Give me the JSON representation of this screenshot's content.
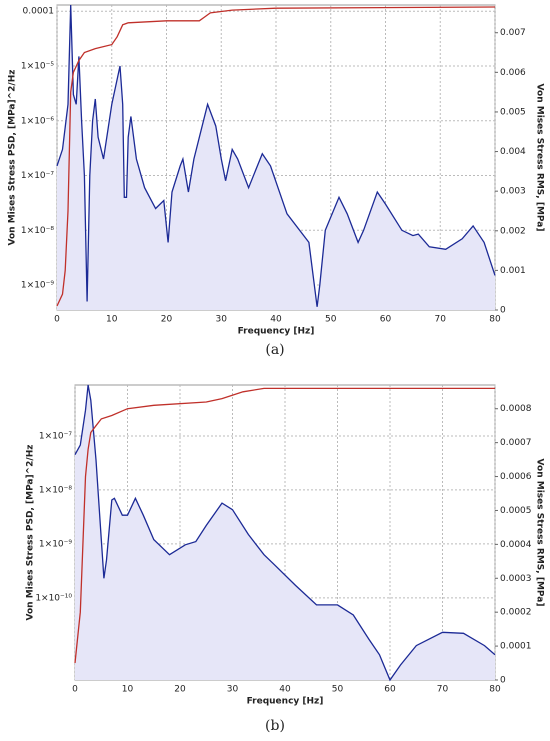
{
  "chart_data": [
    {
      "type": "line",
      "caption": "(a)",
      "x_label": "Frequency [Hz]",
      "y_label": "Von Mises Stress PSD, [MPa]^2/Hz",
      "y2_label": "Von Mises Stress RMS, [MPa]",
      "ylog": true,
      "grid": true,
      "xlim": [
        0,
        80
      ],
      "xticks": [
        0,
        10,
        20,
        30,
        40,
        50,
        60,
        70,
        80
      ],
      "ylim": [
        3.5e-10,
        0.00013
      ],
      "yticks": [
        0.0001,
        {
          "value": 1e-05,
          "label": "1×10⁻⁵"
        },
        {
          "value": 1e-06,
          "label": "1×10⁻⁶"
        },
        {
          "value": 1e-07,
          "label": "1×10⁻⁷"
        },
        {
          "value": 1e-08,
          "label": "1×10⁻⁸"
        },
        {
          "value": 1e-09,
          "label": "1×10⁻⁹"
        }
      ],
      "y2lim": [
        0,
        0.0077
      ],
      "y2ticks": [
        0,
        0.001,
        0.002,
        0.003,
        0.004,
        0.005,
        0.006,
        0.007
      ],
      "series": [
        {
          "name": "PSD",
          "color": "#1c2a96",
          "fill": "#e6e6f8",
          "x": [
            0,
            1,
            2,
            2.5,
            3,
            3.5,
            4,
            4.5,
            5,
            5.5,
            6,
            6.5,
            7,
            7.5,
            8.5,
            10,
            11.5,
            12,
            12.3,
            12.7,
            13,
            13.5,
            14.5,
            16,
            18,
            19.5,
            20.3,
            21,
            22.5,
            23,
            24,
            25,
            27.5,
            29,
            30,
            30.8,
            32,
            33,
            35,
            37.5,
            39,
            42,
            46,
            47.5,
            48,
            49,
            51.5,
            53,
            55,
            56,
            58.5,
            60,
            63,
            65,
            66,
            68,
            71,
            74,
            76,
            78,
            80
          ],
          "values": [
            1.5e-07,
            3e-07,
            2e-06,
            0.00013,
            3e-06,
            2e-06,
            1.5e-05,
            1e-06,
            1e-07,
            5e-10,
            1e-07,
            1e-06,
            2.5e-06,
            5e-07,
            2e-07,
            2e-06,
            1e-05,
            2e-06,
            4e-08,
            4e-08,
            5e-07,
            1.2e-06,
            2e-07,
            6e-08,
            2.5e-08,
            3.5e-08,
            6e-09,
            5e-08,
            1.5e-07,
            2e-07,
            5e-08,
            2e-07,
            2e-06,
            8e-07,
            2e-07,
            8e-08,
            3e-07,
            2e-07,
            6e-08,
            2.5e-07,
            1.5e-07,
            2e-08,
            6e-09,
            4e-10,
            1e-09,
            1e-08,
            4e-08,
            2e-08,
            6e-09,
            1e-08,
            5e-08,
            3e-08,
            1e-08,
            8e-09,
            8.5e-09,
            5e-09,
            4.5e-09,
            7e-09,
            1.2e-08,
            6e-09,
            1.5e-09
          ]
        },
        {
          "name": "RMS",
          "color": "#c0302a",
          "axis": "y2",
          "x": [
            0,
            1,
            1.5,
            2,
            2.5,
            3,
            4,
            5,
            7,
            10,
            11,
            12,
            13,
            20,
            26,
            27,
            28,
            32,
            40,
            80
          ],
          "values": [
            0.0001,
            0.0004,
            0.001,
            0.0025,
            0.0055,
            0.006,
            0.0063,
            0.0065,
            0.0066,
            0.0067,
            0.0069,
            0.0072,
            0.00725,
            0.0073,
            0.0073,
            0.0074,
            0.0075,
            0.00757,
            0.00762,
            0.00765
          ]
        }
      ]
    },
    {
      "type": "line",
      "caption": "(b)",
      "x_label": "Frequency [Hz]",
      "y_label": "Von Mises Stress PSD, [MPa]^2/Hz",
      "y2_label": "Von Mises Stress RMS, [MPa]",
      "ylog": true,
      "grid": true,
      "xlim": [
        0,
        80
      ],
      "xticks": [
        0,
        10,
        20,
        30,
        40,
        50,
        60,
        70,
        80
      ],
      "ylim": [
        3e-12,
        8.8e-07
      ],
      "yticks": [
        {
          "value": 1e-07,
          "label": "1×10⁻⁷"
        },
        {
          "value": 1e-08,
          "label": "1×10⁻⁸"
        },
        {
          "value": 1e-09,
          "label": "1×10⁻⁹"
        },
        {
          "value": 1e-10,
          "label": "1×10⁻¹⁰"
        }
      ],
      "y2lim": [
        0,
        0.00087
      ],
      "y2ticks": [
        0,
        0.0001,
        0.0002,
        0.0003,
        0.0004,
        0.0005,
        0.0006,
        0.0007,
        0.0008
      ],
      "series": [
        {
          "name": "PSD",
          "color": "#1c2a96",
          "fill": "#e6e6f8",
          "x": [
            0,
            1,
            2,
            2.5,
            3,
            4,
            5,
            5.5,
            6,
            7,
            7.5,
            9,
            10,
            11.5,
            13,
            15,
            18,
            21,
            23,
            25,
            28,
            30,
            33,
            36,
            38,
            42,
            46,
            50,
            53,
            56,
            58,
            60,
            62,
            65,
            70,
            74,
            78,
            80
          ],
          "values": [
            4.5e-08,
            6.8e-08,
            3e-07,
            8.8e-07,
            4.6e-07,
            3.6e-08,
            1.2e-09,
            2.3e-10,
            5e-10,
            6.5e-09,
            7e-09,
            3.4e-09,
            3.4e-09,
            7e-09,
            3.4e-09,
            1.2e-09,
            6.3e-10,
            9.6e-10,
            1.1e-09,
            2.2e-09,
            5.7e-09,
            4.3e-09,
            1.5e-09,
            6.3e-10,
            4.1e-10,
            1.7e-10,
            7.4e-11,
            7.4e-11,
            4.8e-11,
            1.7e-11,
            8.8e-12,
            3e-12,
            5.7e-12,
            1.3e-11,
            2.3e-11,
            2.2e-11,
            1.3e-11,
            8.8e-12
          ]
        },
        {
          "name": "RMS",
          "color": "#c0302a",
          "axis": "y2",
          "x": [
            0,
            1,
            1.5,
            2,
            2.5,
            3,
            4,
            5,
            7,
            10,
            15,
            25,
            28,
            32,
            36,
            40,
            80
          ],
          "values": [
            5e-05,
            0.0002,
            0.0004,
            0.0006,
            0.00068,
            0.00073,
            0.00075,
            0.00077,
            0.00078,
            0.0008,
            0.00081,
            0.00082,
            0.00083,
            0.00085,
            0.00086,
            0.00086,
            0.00086
          ]
        }
      ]
    }
  ]
}
